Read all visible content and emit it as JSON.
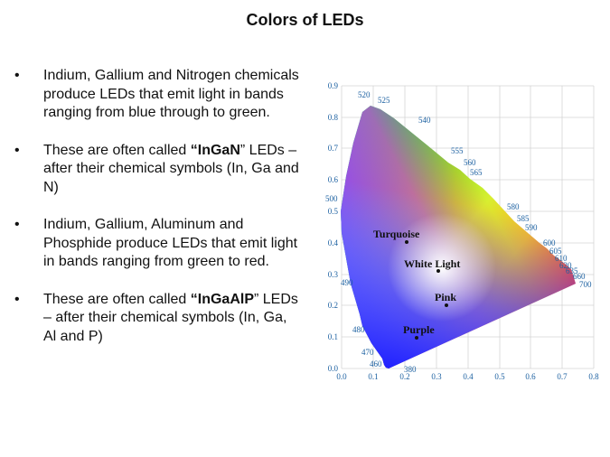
{
  "slide": {
    "title": "Colors of LEDs",
    "bullet_marker": "•",
    "bullets": [
      {
        "parts": [
          "Indium, Gallium and Nitrogen chemicals produce LEDs that emit light in bands ranging from blue through to green."
        ]
      },
      {
        "parts": [
          "These are often called ",
          "“InGaN",
          "” LEDs – after their chemical symbols (In, Ga and N)"
        ]
      },
      {
        "parts": [
          "Indium, Gallium, Aluminum and Phosphide produce LEDs that emit light in bands ranging from green to red."
        ]
      },
      {
        "parts": [
          "These are often called ",
          "“InGaAlP",
          "” LEDs – after their chemical symbols (In, Ga, Al and P)"
        ]
      }
    ]
  },
  "diagram": {
    "x_ticks": [
      "0.0",
      "0.1",
      "0.2",
      "0.3",
      "0.4",
      "0.5",
      "0.6",
      "0.7",
      "0.8"
    ],
    "y_ticks": [
      "0.0",
      "0.1",
      "0.2",
      "0.3",
      "0.4",
      "0.5",
      "0.6",
      "0.7",
      "0.8",
      "0.9"
    ],
    "wavelengths": {
      "w380": "380",
      "w460": "460",
      "w470": "470",
      "w480": "480",
      "w490": "490",
      "w500": "500",
      "w520": "520",
      "w525": "525",
      "w540": "540",
      "w555": "555",
      "w560": "560",
      "w565": "565",
      "w580": "580",
      "w585": "585",
      "w590": "590",
      "w600": "600",
      "w605": "605",
      "w610": "610",
      "w620": "620",
      "w635": "635",
      "w660": "660",
      "w700": "700"
    },
    "points": {
      "turquoise": "Turquoise",
      "white": "White Light",
      "pink": "Pink",
      "purple": "Purple"
    },
    "colors": {
      "tick_label": "#1a5fa0",
      "grid": "#d4d4d4",
      "spectral_red": "#ff1030",
      "spectral_green": "#10e010",
      "spectral_blue": "#2020ff"
    }
  }
}
